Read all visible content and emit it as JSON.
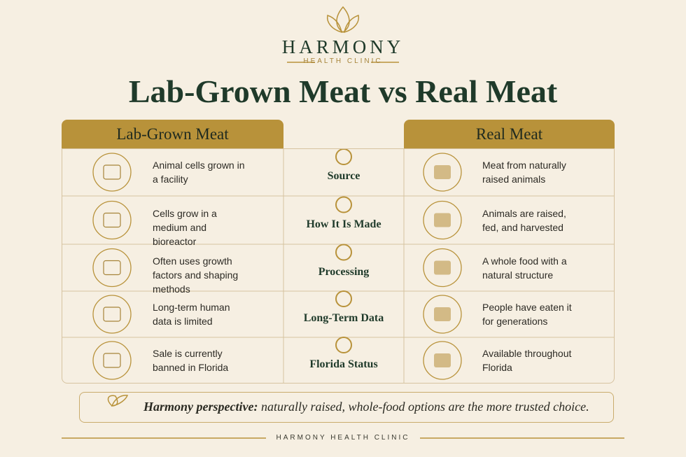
{
  "header": {
    "brand": "HARMONY",
    "subtitle": "HEALTH CLINIC"
  },
  "title": "Lab-Grown Meat vs Real Meat",
  "table": {
    "columns": [
      "Lab-Grown Meat",
      "Real Meat"
    ],
    "rows": [
      {
        "label": "Source",
        "lab": "Animal cells grown in a facility",
        "real": "Meat from naturally raised animals"
      },
      {
        "label": "How It Is Made",
        "lab": "Cells grow in a medium and bioreactor",
        "real": "Animals are raised, fed, and harvested"
      },
      {
        "label": "Processing",
        "lab": "Often uses growth factors and shaping methods",
        "real": "A whole food with a natural structure"
      },
      {
        "label": "Long-Term Data",
        "lab": "Long-term human data is limited",
        "real": "People have eaten it for generations"
      },
      {
        "label": "Florida Status",
        "lab": "Sale is currently banned in Florida",
        "real": "Available throughout Florida"
      }
    ]
  },
  "perspective": {
    "lead": "Harmony perspective:",
    "text": "naturally raised, whole-food options are the more trusted choice."
  },
  "footer": "HARMONY HEALTH CLINIC"
}
